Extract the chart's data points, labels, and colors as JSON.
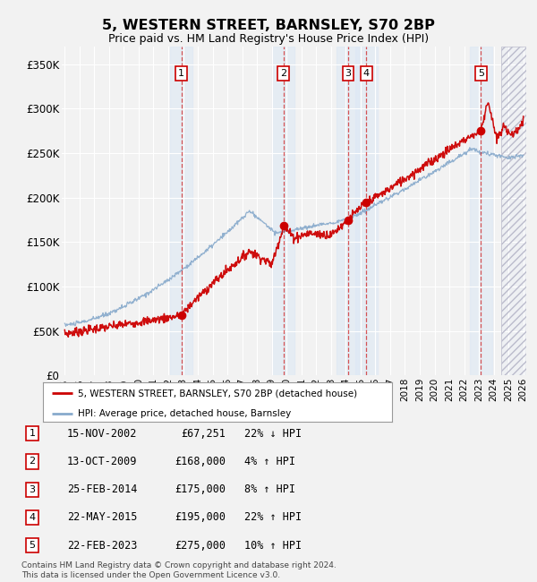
{
  "title": "5, WESTERN STREET, BARNSLEY, S70 2BP",
  "subtitle": "Price paid vs. HM Land Registry's House Price Index (HPI)",
  "bg_color": "#f2f2f2",
  "plot_bg_color": "#f2f2f2",
  "grid_color": "#ffffff",
  "red_color": "#cc0000",
  "blue_color": "#88aacc",
  "sale_dates_x": [
    2002.88,
    2009.79,
    2014.15,
    2015.39,
    2023.14
  ],
  "sale_prices_y": [
    67251,
    168000,
    175000,
    195000,
    275000
  ],
  "sale_labels": [
    "1",
    "2",
    "3",
    "4",
    "5"
  ],
  "ylim": [
    0,
    370000
  ],
  "yticks": [
    0,
    50000,
    100000,
    150000,
    200000,
    250000,
    300000,
    350000
  ],
  "ytick_labels": [
    "£0",
    "£50K",
    "£100K",
    "£150K",
    "£200K",
    "£250K",
    "£300K",
    "£350K"
  ],
  "xmin": 1995,
  "xmax": 2026,
  "transactions": [
    {
      "num": "1",
      "date": "15-NOV-2002",
      "price": "£67,251",
      "hpi": "22% ↓ HPI"
    },
    {
      "num": "2",
      "date": "13-OCT-2009",
      "price": "£168,000",
      "hpi": "4% ↑ HPI"
    },
    {
      "num": "3",
      "date": "25-FEB-2014",
      "price": "£175,000",
      "hpi": "8% ↑ HPI"
    },
    {
      "num": "4",
      "date": "22-MAY-2015",
      "price": "£195,000",
      "hpi": "22% ↑ HPI"
    },
    {
      "num": "5",
      "date": "22-FEB-2023",
      "price": "£275,000",
      "hpi": "10% ↑ HPI"
    }
  ],
  "legend_entries": [
    "5, WESTERN STREET, BARNSLEY, S70 2BP (detached house)",
    "HPI: Average price, detached house, Barnsley"
  ],
  "footer": "Contains HM Land Registry data © Crown copyright and database right 2024.\nThis data is licensed under the Open Government Licence v3.0."
}
